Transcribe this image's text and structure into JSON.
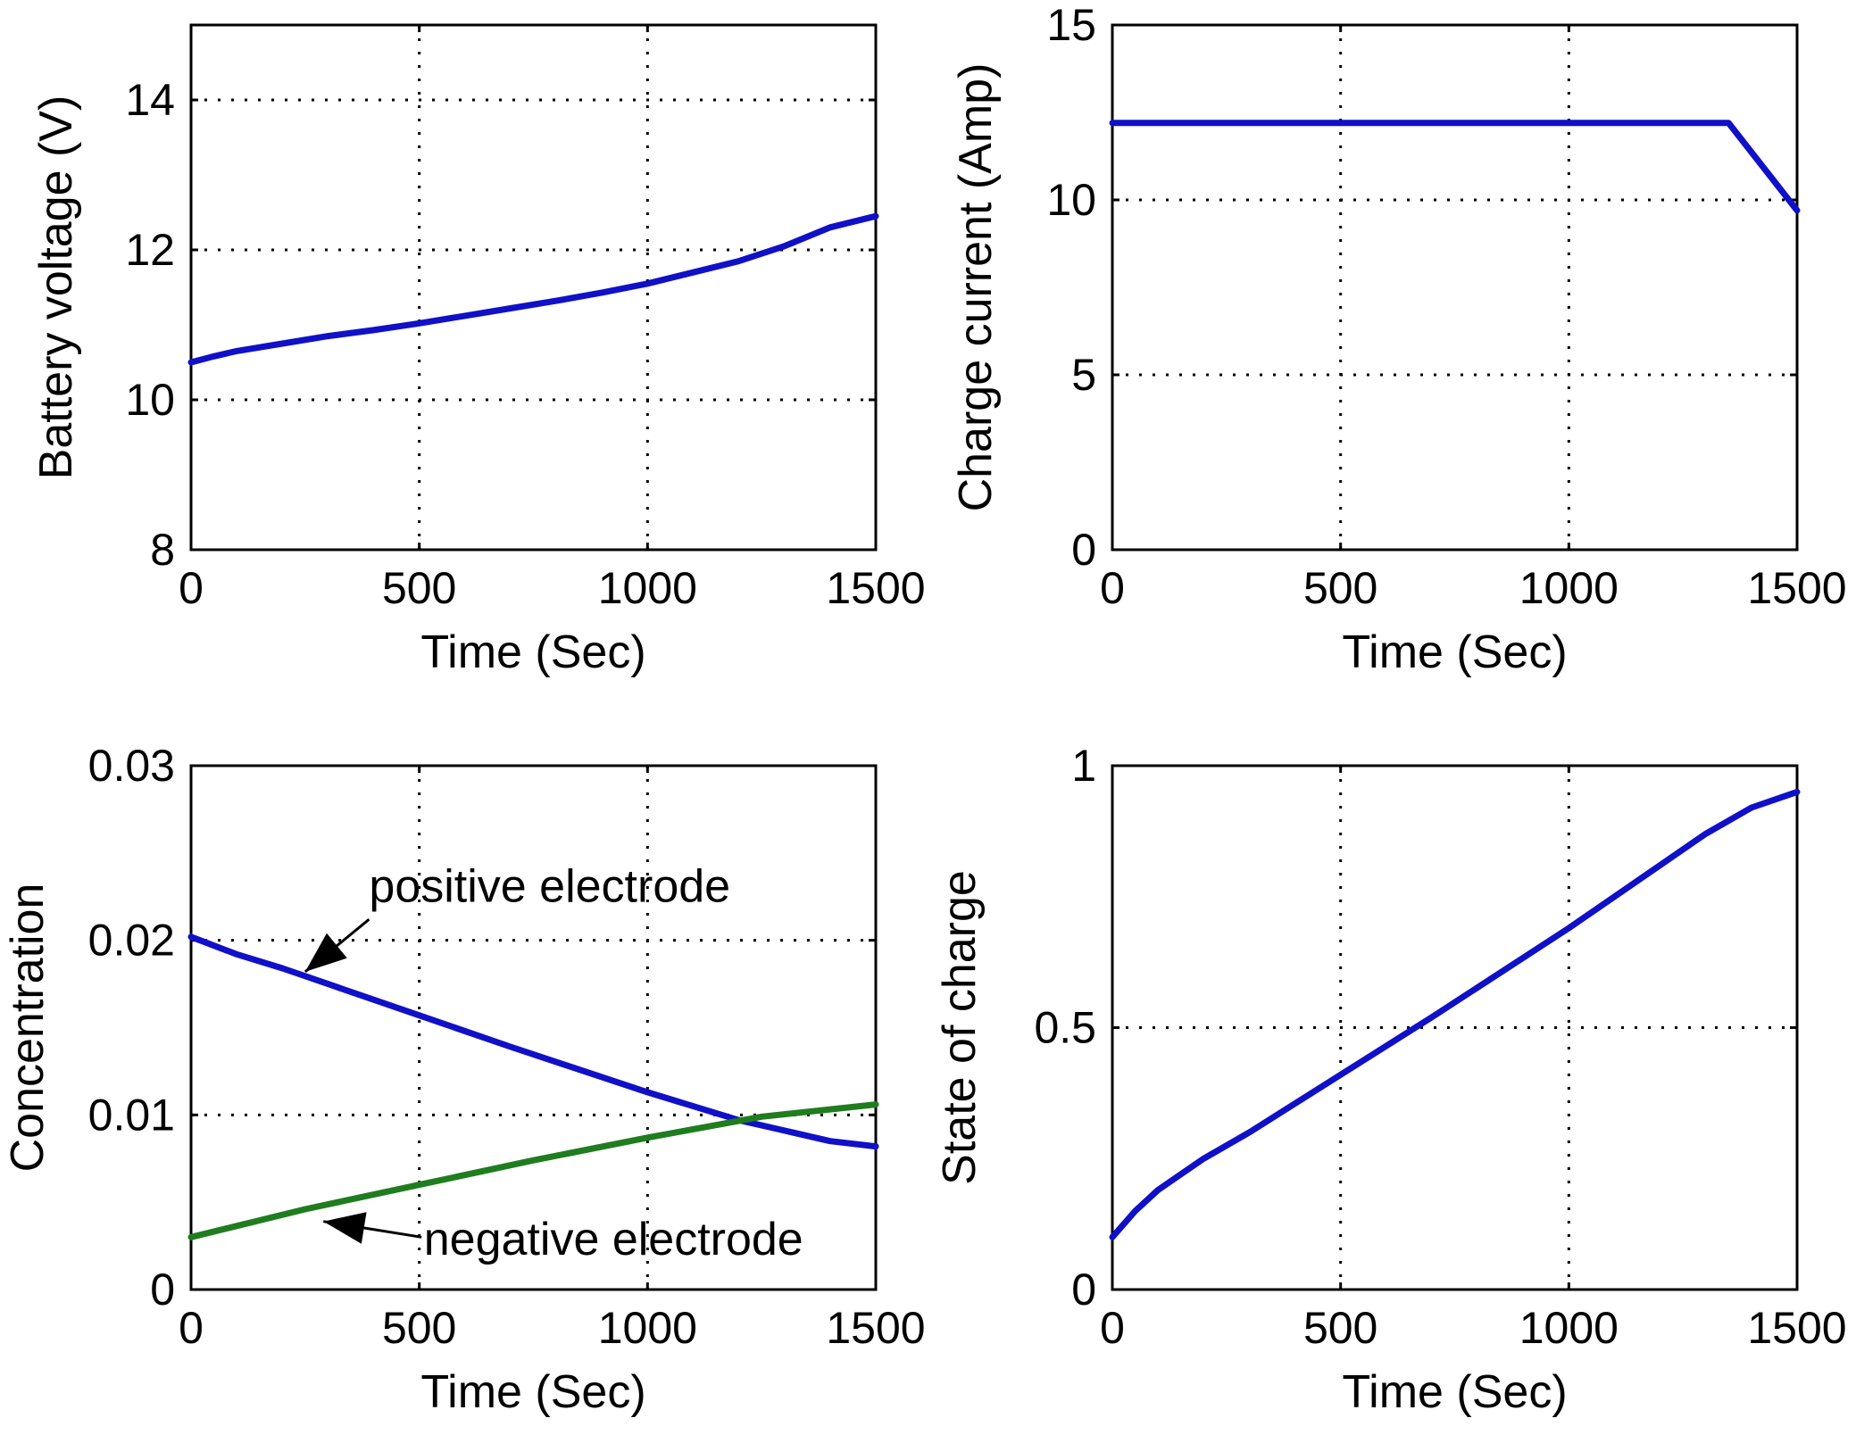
{
  "chart_data": [
    {
      "type": "line",
      "id": "voltage",
      "xlabel": "Time (Sec)",
      "ylabel": "Battery voltage (V)",
      "xlim": [
        0,
        1500
      ],
      "ylim": [
        8,
        15
      ],
      "xticks": [
        0,
        500,
        1000,
        1500
      ],
      "yticks": [
        8,
        10,
        12,
        14
      ],
      "xtick_labels": [
        "0",
        "500",
        "1000",
        "1500"
      ],
      "ytick_labels": [
        "8",
        "10",
        "12",
        "14"
      ],
      "grid": true,
      "series": [
        {
          "name": "Battery voltage",
          "color": "#1010c8",
          "x": [
            0,
            50,
            100,
            200,
            300,
            400,
            500,
            600,
            700,
            800,
            900,
            1000,
            1100,
            1200,
            1300,
            1400,
            1500
          ],
          "y": [
            10.5,
            10.58,
            10.65,
            10.75,
            10.85,
            10.93,
            11.02,
            11.12,
            11.22,
            11.32,
            11.43,
            11.55,
            11.7,
            11.85,
            12.05,
            12.3,
            12.45
          ]
        }
      ]
    },
    {
      "type": "line",
      "id": "current",
      "xlabel": "Time (Sec)",
      "ylabel": "Charge current (Amp)",
      "xlim": [
        0,
        1500
      ],
      "ylim": [
        0,
        15
      ],
      "xticks": [
        0,
        500,
        1000,
        1500
      ],
      "yticks": [
        0,
        5,
        10,
        15
      ],
      "xtick_labels": [
        "0",
        "500",
        "1000",
        "1500"
      ],
      "ytick_labels": [
        "0",
        "5",
        "10",
        "15"
      ],
      "grid": true,
      "series": [
        {
          "name": "Charge current",
          "color": "#1010c8",
          "x": [
            0,
            1350,
            1500
          ],
          "y": [
            12.2,
            12.2,
            9.7
          ]
        }
      ]
    },
    {
      "type": "line",
      "id": "concentration",
      "xlabel": "Time (Sec)",
      "ylabel": "Concentration",
      "xlim": [
        0,
        1500
      ],
      "ylim": [
        0,
        0.03
      ],
      "xticks": [
        0,
        500,
        1000,
        1500
      ],
      "yticks": [
        0,
        0.01,
        0.02,
        0.03
      ],
      "xtick_labels": [
        "0",
        "500",
        "1000",
        "1500"
      ],
      "ytick_labels": [
        "0",
        "0.01",
        "0.02",
        "0.03"
      ],
      "grid": true,
      "series": [
        {
          "name": "positive electrode",
          "color": "#1010c8",
          "x": [
            0,
            100,
            200,
            300,
            500,
            700,
            1000,
            1200,
            1300,
            1400,
            1500
          ],
          "y": [
            0.0202,
            0.0192,
            0.0184,
            0.0175,
            0.0157,
            0.0139,
            0.0113,
            0.0097,
            0.0091,
            0.0085,
            0.0082
          ]
        },
        {
          "name": "negative electrode",
          "color": "#1f7d1f",
          "x": [
            0,
            250,
            500,
            750,
            1000,
            1250,
            1500
          ],
          "y": [
            0.003,
            0.0046,
            0.006,
            0.0074,
            0.0087,
            0.0099,
            0.0106
          ]
        }
      ],
      "annotations": [
        {
          "text": "positive electrode",
          "x": 390,
          "y": 0.0222,
          "arrow_to": [
            250,
            0.0182
          ],
          "arrow_from": [
            390,
            0.0212
          ]
        },
        {
          "text": "negative electrode",
          "x": 510,
          "y": 0.002,
          "arrow_to": [
            290,
            0.0039
          ],
          "arrow_from": [
            505,
            0.003
          ]
        }
      ]
    },
    {
      "type": "line",
      "id": "soc",
      "xlabel": "Time (Sec)",
      "ylabel": "State of charge",
      "xlim": [
        0,
        1500
      ],
      "ylim": [
        0,
        1
      ],
      "xticks": [
        0,
        500,
        1000,
        1500
      ],
      "yticks": [
        0,
        0.5,
        1
      ],
      "xtick_labels": [
        "0",
        "500",
        "1000",
        "1500"
      ],
      "ytick_labels": [
        "0",
        "0.5",
        "1"
      ],
      "grid": true,
      "series": [
        {
          "name": "State of charge",
          "color": "#1010c8",
          "x": [
            0,
            50,
            100,
            200,
            300,
            500,
            700,
            1000,
            1200,
            1300,
            1400,
            1500
          ],
          "y": [
            0.1,
            0.15,
            0.19,
            0.25,
            0.3,
            0.41,
            0.52,
            0.69,
            0.81,
            0.87,
            0.92,
            0.95
          ]
        }
      ]
    }
  ]
}
